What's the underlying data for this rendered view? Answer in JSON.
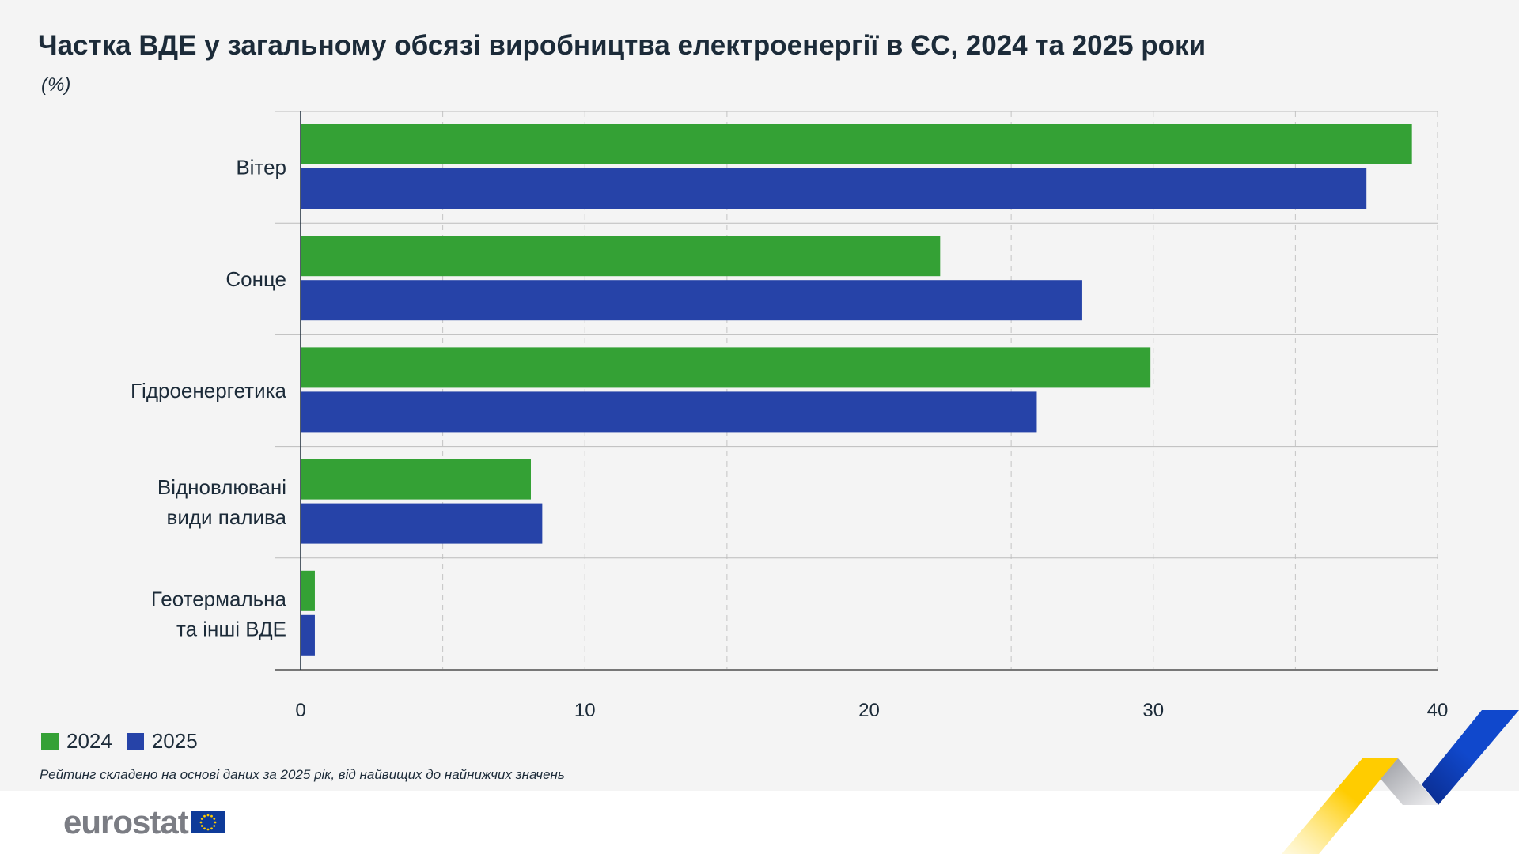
{
  "title": "Частка ВДЕ у загальному обсязі виробництва електроенергії в ЄС, 2024 та 2025 роки",
  "unit": "(%)",
  "footnote": "Рейтинг складено на основі даних за 2025 рік, від найвищих до найнижчих значень",
  "logo_text": "eurostat",
  "colors": {
    "2024": "#34a135",
    "2025": "#2643a8",
    "background": "#f4f4f4"
  },
  "chart_data": {
    "type": "bar",
    "orientation": "horizontal",
    "categories": [
      "Вітер",
      "Сонце",
      "Гідроенергетика",
      "Відновлювані види палива",
      "Геотермальна та інші ВДЕ"
    ],
    "category_lines": [
      [
        "Вітер"
      ],
      [
        "Сонце"
      ],
      [
        "Гідроенергетика"
      ],
      [
        "Відновлювані",
        "види палива"
      ],
      [
        "Геотермальна",
        "та інші ВДЕ"
      ]
    ],
    "series": [
      {
        "name": "2024",
        "color": "#34a135",
        "values": [
          39.1,
          22.5,
          29.9,
          8.1,
          0.5
        ]
      },
      {
        "name": "2025",
        "color": "#2643a8",
        "values": [
          37.5,
          27.5,
          25.9,
          8.5,
          0.5
        ]
      }
    ],
    "xlim": [
      0,
      40
    ],
    "xticks": [
      "0",
      "10",
      "20",
      "30",
      "40"
    ],
    "grid": true,
    "legend_placement": "bottom-left"
  }
}
